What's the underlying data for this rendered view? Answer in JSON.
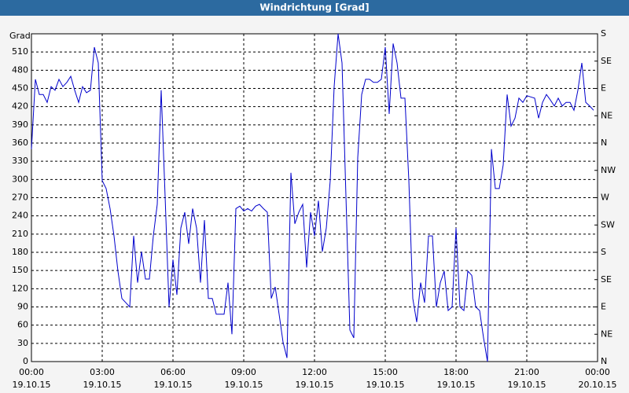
{
  "chart_data": {
    "type": "line",
    "title": "Windrichtung [Grad]",
    "y_label": "Grad",
    "x": [
      0,
      10,
      20,
      30,
      40,
      50,
      60,
      70,
      80,
      90,
      100,
      110,
      120,
      130,
      140,
      150,
      160,
      170,
      180,
      190,
      200,
      210,
      220,
      230,
      240,
      250,
      260,
      270,
      280,
      290,
      300,
      310,
      320,
      330,
      340,
      350,
      360,
      370,
      380,
      390,
      400,
      410,
      420,
      430,
      440,
      450,
      460,
      470,
      480,
      490,
      500,
      510,
      520,
      530,
      540,
      550,
      560,
      570,
      580,
      590,
      600,
      610,
      620,
      630,
      640,
      650,
      660,
      670,
      680,
      690,
      700,
      710,
      720,
      730,
      740,
      750,
      760,
      770,
      780,
      790,
      800,
      810,
      820,
      830,
      840,
      850,
      860,
      870,
      880,
      890,
      900,
      910,
      920,
      930,
      940,
      950,
      960,
      970,
      980,
      990,
      1000,
      1010,
      1020,
      1030,
      1040,
      1050,
      1060,
      1070,
      1080,
      1090,
      1100,
      1110,
      1120,
      1130,
      1140,
      1150,
      1160,
      1170,
      1180,
      1190,
      1200,
      1210,
      1220,
      1230,
      1240,
      1250,
      1260,
      1270,
      1280,
      1290,
      1300,
      1310,
      1320,
      1330,
      1340,
      1350,
      1360,
      1370,
      1380,
      1390,
      1400,
      1410,
      1420,
      1430
    ],
    "series": [
      {
        "name": "Windrichtung",
        "color": "#0000cc",
        "values": [
          350,
          465,
          440,
          440,
          427,
          453,
          447,
          465,
          453,
          460,
          470,
          447,
          427,
          453,
          443,
          447,
          518,
          492,
          298,
          285,
          252,
          207,
          149,
          104,
          97,
          90,
          207,
          130,
          181,
          136,
          136,
          207,
          259,
          447,
          272,
          90,
          168,
          110,
          220,
          246,
          194,
          252,
          220,
          130,
          233,
          104,
          104,
          78,
          78,
          78,
          130,
          45,
          252,
          256,
          248,
          252,
          248,
          256,
          259,
          252,
          246,
          104,
          123,
          78,
          32,
          6,
          311,
          227,
          246,
          259,
          155,
          246,
          207,
          265,
          181,
          220,
          298,
          453,
          540,
          492,
          272,
          52,
          39,
          336,
          440,
          465,
          465,
          460,
          460,
          465,
          518,
          408,
          524,
          492,
          434,
          434,
          298,
          104,
          65,
          130,
          97,
          207,
          207,
          90,
          130,
          149,
          84,
          90,
          220,
          90,
          84,
          149,
          142,
          90,
          84,
          39,
          0,
          350,
          285,
          285,
          324,
          440,
          388,
          401,
          434,
          427,
          438,
          436,
          434,
          401,
          427,
          440,
          431,
          421,
          434,
          421,
          427,
          427,
          414,
          447,
          492,
          427,
          421,
          414
        ]
      }
    ],
    "xlim": [
      0,
      1440
    ],
    "xticks": [
      {
        "value": 0,
        "label": "00:00"
      },
      {
        "value": 180,
        "label": "03:00"
      },
      {
        "value": 360,
        "label": "06:00"
      },
      {
        "value": 540,
        "label": "09:00"
      },
      {
        "value": 720,
        "label": "12:00"
      },
      {
        "value": 900,
        "label": "15:00"
      },
      {
        "value": 1080,
        "label": "18:00"
      },
      {
        "value": 1260,
        "label": "21:00"
      },
      {
        "value": 1440,
        "label": "00:00"
      }
    ],
    "xtick_dates": [
      "19.10.15",
      "19.10.15",
      "19.10.15",
      "19.10.15",
      "19.10.15",
      "19.10.15",
      "19.10.15",
      "19.10.15",
      "20.10.15"
    ],
    "ylim": [
      0,
      540
    ],
    "yticks": [
      0,
      30,
      60,
      90,
      120,
      150,
      180,
      210,
      240,
      270,
      300,
      330,
      360,
      390,
      420,
      450,
      480,
      510
    ],
    "y2lim": [
      0,
      540
    ],
    "y2ticks": [
      {
        "value": 0,
        "label": "N"
      },
      {
        "value": 45,
        "label": "NE"
      },
      {
        "value": 90,
        "label": "E"
      },
      {
        "value": 135,
        "label": "SE"
      },
      {
        "value": 180,
        "label": "S"
      },
      {
        "value": 225,
        "label": "SW"
      },
      {
        "value": 270,
        "label": "W"
      },
      {
        "value": 315,
        "label": "NW"
      },
      {
        "value": 360,
        "label": "N"
      },
      {
        "value": 405,
        "label": "NE"
      },
      {
        "value": 450,
        "label": "E"
      },
      {
        "value": 495,
        "label": "SE"
      },
      {
        "value": 540,
        "label": "S"
      }
    ],
    "grid": true
  }
}
